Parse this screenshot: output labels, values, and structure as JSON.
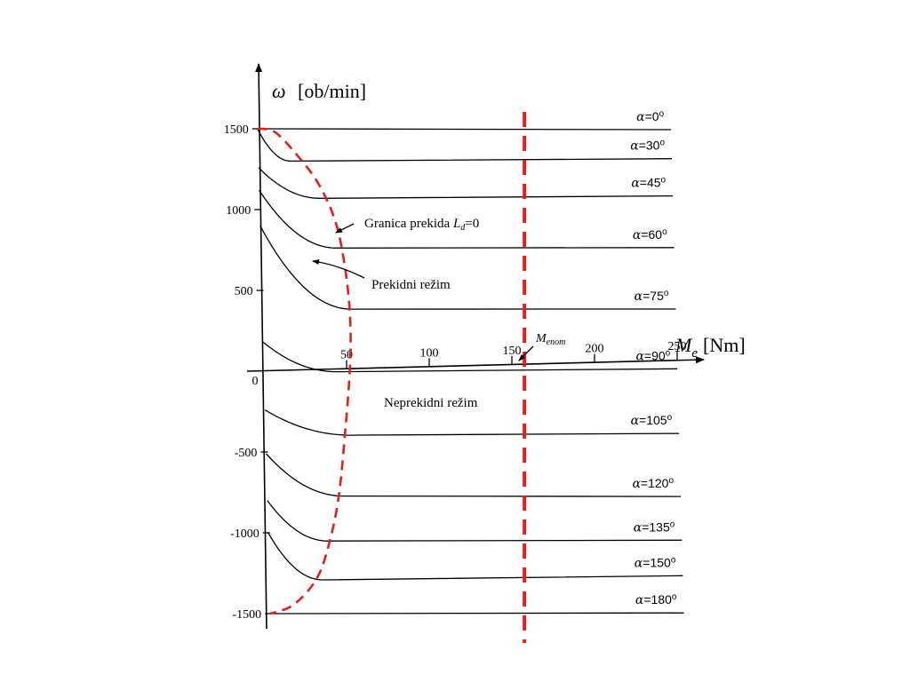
{
  "chart_data": {
    "type": "line",
    "y_axis": {
      "label_symbol": "ω",
      "label_unit": "[ob/min]",
      "ticks": [
        {
          "value": 1500,
          "label": "1500"
        },
        {
          "value": 1000,
          "label": "1000"
        },
        {
          "value": 500,
          "label": "500"
        },
        {
          "value": -500,
          "label": "-500"
        },
        {
          "value": -1000,
          "label": "-1000"
        },
        {
          "value": -1500,
          "label": "-1500"
        }
      ]
    },
    "x_axis": {
      "label_symbol": "M",
      "label_sub": "e",
      "label_unit": "[Nm]",
      "ticks": [
        {
          "value": 0,
          "label": "0"
        },
        {
          "value": 50,
          "label": "50"
        },
        {
          "value": 100,
          "label": "100"
        },
        {
          "value": 150,
          "label": "150"
        },
        {
          "value": 200,
          "label": "200"
        },
        {
          "value": 250,
          "label": "250"
        }
      ]
    },
    "series": [
      {
        "name": "α=0o",
        "alpha": "α",
        "rest": "=0",
        "sup": "o",
        "w0": 1500,
        "wk": 1500,
        "mb": 0,
        "m_end": 250,
        "w_end": 1430
      },
      {
        "name": "α=30o",
        "alpha": "α",
        "rest": "=30",
        "sup": "o",
        "w0": 1500,
        "wk": 1295,
        "mb": 20,
        "m_end": 250,
        "w_end": 1250
      },
      {
        "name": "α=45o",
        "alpha": "α",
        "rest": "=45",
        "sup": "o",
        "w0": 1260,
        "wk": 1060,
        "mb": 38,
        "m_end": 250,
        "w_end": 1020
      },
      {
        "name": "α=60o",
        "alpha": "α",
        "rest": "=60",
        "sup": "o",
        "w0": 1120,
        "wk": 750,
        "mb": 47,
        "m_end": 250,
        "w_end": 700
      },
      {
        "name": "α=75o",
        "alpha": "α",
        "rest": "=75",
        "sup": "o",
        "w0": 900,
        "wk": 370,
        "mb": 55,
        "m_end": 250,
        "w_end": 320
      },
      {
        "name": "α=90o",
        "alpha": "α",
        "rest": "=90",
        "sup": "o",
        "w0": 180,
        "wk": -15,
        "mb": 46,
        "m_end": 250,
        "w_end": -50
      },
      {
        "name": "α=105o",
        "alpha": "α",
        "rest": "=105",
        "sup": "o",
        "w0": -240,
        "wk": -410,
        "mb": 55,
        "m_end": 250,
        "w_end": -450
      },
      {
        "name": "α=120o",
        "alpha": "α",
        "rest": "=120",
        "sup": "o",
        "w0": -510,
        "wk": -785,
        "mb": 48,
        "m_end": 250,
        "w_end": -840
      },
      {
        "name": "α=135o",
        "alpha": "α",
        "rest": "=135",
        "sup": "o",
        "w0": -800,
        "wk": -1060,
        "mb": 37,
        "m_end": 250,
        "w_end": -1110
      },
      {
        "name": "α=150o",
        "alpha": "α",
        "rest": "=150",
        "sup": "o",
        "w0": -1000,
        "wk": -1300,
        "mb": 33,
        "m_end": 250,
        "w_end": -1330
      },
      {
        "name": "α=180o",
        "alpha": "α",
        "rest": "=180",
        "sup": "o",
        "w0": -1500,
        "wk": -1500,
        "mb": 0,
        "m_end": 250,
        "w_end": -1560
      }
    ],
    "boundary": {
      "points": [
        [
          0,
          1500
        ],
        [
          10,
          1480
        ],
        [
          22,
          1350
        ],
        [
          36,
          1150
        ],
        [
          46,
          900
        ],
        [
          51,
          600
        ],
        [
          53,
          300
        ],
        [
          52,
          0
        ],
        [
          48,
          -400
        ],
        [
          43,
          -800
        ],
        [
          36,
          -1100
        ],
        [
          28,
          -1300
        ],
        [
          14,
          -1450
        ],
        [
          0,
          -1500
        ]
      ]
    },
    "vertical_line": {
      "m": 156
    },
    "annotations": [
      {
        "id": "granica",
        "text": "Granica prekida ",
        "italic": "L",
        "sub": "d",
        "tail": "=0"
      },
      {
        "id": "prekidni",
        "text": "Prekidni režim"
      },
      {
        "id": "neprekidni",
        "text": "Neprekidni režim"
      },
      {
        "id": "menom",
        "italic": "M",
        "sub": "enom"
      }
    ],
    "colors": {
      "curves": "#000000",
      "boundary": "#e0201b",
      "axes": "#000000"
    }
  }
}
